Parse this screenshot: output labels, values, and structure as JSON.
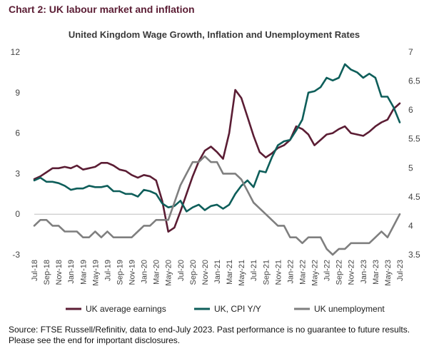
{
  "heading": "Chart 2: UK labour market and inflation",
  "chart_data": {
    "type": "line",
    "title": "United Kingdom Wage Growth, Inflation and Unemployment Rates",
    "x": [
      "Jul-18",
      "Aug-18",
      "Sep-18",
      "Oct-18",
      "Nov-18",
      "Dec-18",
      "Jan-19",
      "Feb-19",
      "Mar-19",
      "Apr-19",
      "May-19",
      "Jun-19",
      "Jul-19",
      "Aug-19",
      "Sep-19",
      "Oct-19",
      "Nov-19",
      "Dec-19",
      "Jan-20",
      "Feb-20",
      "Mar-20",
      "Apr-20",
      "May-20",
      "Jun-20",
      "Jul-20",
      "Aug-20",
      "Sep-20",
      "Oct-20",
      "Nov-20",
      "Dec-20",
      "Jan-21",
      "Feb-21",
      "Mar-21",
      "Apr-21",
      "May-21",
      "Jun-21",
      "Jul-21",
      "Aug-21",
      "Sep-21",
      "Oct-21",
      "Nov-21",
      "Dec-21",
      "Jan-22",
      "Feb-22",
      "Mar-22",
      "Apr-22",
      "May-22",
      "Jun-22",
      "Jul-22",
      "Aug-22",
      "Sep-22",
      "Oct-22",
      "Nov-22",
      "Dec-22",
      "Jan-23",
      "Feb-23",
      "Mar-23",
      "Apr-23",
      "May-23",
      "Jun-23",
      "Jul-23"
    ],
    "x_tick_labels": [
      "Jul-18",
      "Sep-18",
      "Nov-18",
      "Jan-19",
      "Mar-19",
      "May-19",
      "Jul-19",
      "Sep-19",
      "Nov-19",
      "Jan-20",
      "Mar-20",
      "May-20",
      "Jul-20",
      "Sep-20",
      "Nov-20",
      "Jan-21",
      "Mar-21",
      "May-21",
      "Jul-21",
      "Sep-21",
      "Nov-21",
      "Jan-22",
      "Mar-22",
      "May-22",
      "Jul-22",
      "Sep-22",
      "Nov-22",
      "Jan-23",
      "Mar-23",
      "May-23",
      "Jul-23"
    ],
    "y_left": {
      "ylim": [
        -3,
        12
      ],
      "ticks": [
        "12",
        "9",
        "6",
        "3",
        "0",
        "-3"
      ]
    },
    "y_right": {
      "ylim": [
        3.5,
        7
      ],
      "ticks": [
        "7",
        "6.5",
        "6",
        "5.5",
        "5",
        "4.5",
        "4",
        "3.5"
      ]
    },
    "series": [
      {
        "name": "UK average earnings",
        "axis": "left",
        "color": "#5b1d34",
        "values": [
          2.6,
          2.8,
          3.1,
          3.4,
          3.4,
          3.5,
          3.4,
          3.6,
          3.3,
          3.4,
          3.5,
          3.8,
          3.8,
          3.6,
          3.3,
          3.2,
          2.9,
          2.7,
          2.9,
          2.8,
          2.5,
          1.0,
          -1.3,
          -1.0,
          0.2,
          1.5,
          2.8,
          3.9,
          4.7,
          5.0,
          4.6,
          4.1,
          6.0,
          9.2,
          8.6,
          7.2,
          5.8,
          4.6,
          4.2,
          4.5,
          4.9,
          5.1,
          5.5,
          6.5,
          6.3,
          5.9,
          5.1,
          5.5,
          5.9,
          6.0,
          6.3,
          6.5,
          6.0,
          5.9,
          5.8,
          6.1,
          6.5,
          6.8,
          7.0,
          7.8,
          8.2
        ]
      },
      {
        "name": "UK, CPI Y/Y",
        "axis": "left",
        "color": "#0e5e5a",
        "values": [
          2.5,
          2.7,
          2.4,
          2.4,
          2.3,
          2.1,
          1.8,
          1.9,
          1.9,
          2.1,
          2.0,
          2.0,
          2.1,
          1.7,
          1.7,
          1.5,
          1.5,
          1.3,
          1.8,
          1.7,
          1.5,
          0.8,
          0.5,
          0.6,
          1.0,
          0.2,
          0.5,
          0.7,
          0.3,
          0.6,
          0.7,
          0.4,
          0.7,
          1.5,
          2.1,
          2.5,
          2.0,
          3.2,
          3.1,
          4.2,
          5.1,
          5.4,
          5.5,
          6.2,
          7.0,
          9.0,
          9.1,
          9.4,
          10.1,
          9.9,
          10.1,
          11.1,
          10.7,
          10.5,
          10.1,
          10.4,
          10.1,
          8.7,
          8.7,
          7.9,
          6.8
        ]
      },
      {
        "name": "UK unemployment",
        "axis": "right",
        "color": "#7f7f7f",
        "values": [
          4.0,
          4.1,
          4.1,
          4.0,
          4.0,
          3.9,
          3.9,
          3.9,
          3.8,
          3.8,
          3.9,
          3.8,
          3.9,
          3.8,
          3.8,
          3.8,
          3.8,
          3.9,
          4.0,
          4.0,
          4.1,
          4.1,
          4.1,
          4.4,
          4.7,
          4.9,
          5.1,
          5.1,
          5.2,
          5.1,
          5.1,
          4.9,
          4.9,
          4.9,
          4.8,
          4.6,
          4.4,
          4.3,
          4.2,
          4.1,
          4.0,
          4.0,
          3.8,
          3.8,
          3.7,
          3.8,
          3.8,
          3.8,
          3.6,
          3.5,
          3.6,
          3.6,
          3.7,
          3.7,
          3.7,
          3.7,
          3.8,
          3.9,
          3.8,
          4.0,
          4.2
        ]
      }
    ],
    "legend": {
      "position": "bottom"
    },
    "grid": false
  },
  "source_line_1": "Source: FTSE Russell/Refinitiv, data to end-July 2023. Past performance is no guarantee to future results.",
  "source_line_2": "Please see the end for important disclosures."
}
